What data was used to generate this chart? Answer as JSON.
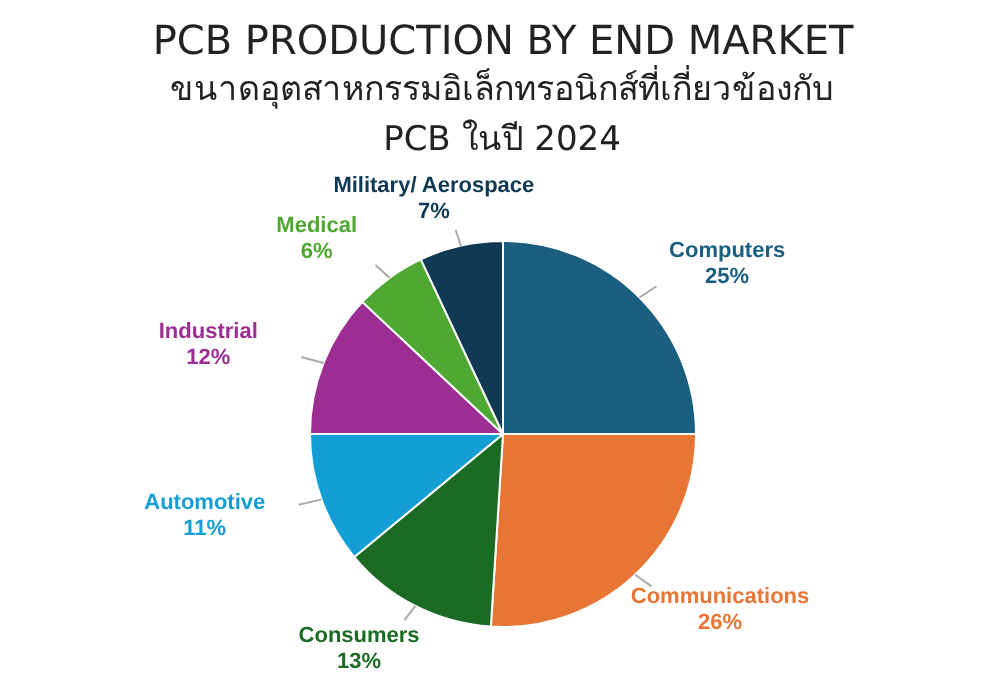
{
  "chart_data": {
    "type": "pie",
    "title": "PCB PRODUCTION BY END MARKET",
    "subtitle": "ขนาดอุตสาหกรรมอิเล็กทรอนิกส์ที่เกี่ยวข้องกับ PCB ในปี 2024",
    "categories": [
      "Computers",
      "Communications",
      "Consumers",
      "Automotive",
      "Industrial",
      "Medical",
      "Military/ Aerospace"
    ],
    "values": [
      25,
      26,
      13,
      11,
      12,
      6,
      7
    ],
    "colors": [
      "#1a5e80",
      "#e87534",
      "#1b6b25",
      "#139fd5",
      "#9b2d93",
      "#4ea832",
      "#103a54"
    ],
    "value_labels": [
      "25%",
      "26%",
      "13%",
      "11%",
      "12%",
      "6%",
      "7%"
    ],
    "legend": false
  }
}
